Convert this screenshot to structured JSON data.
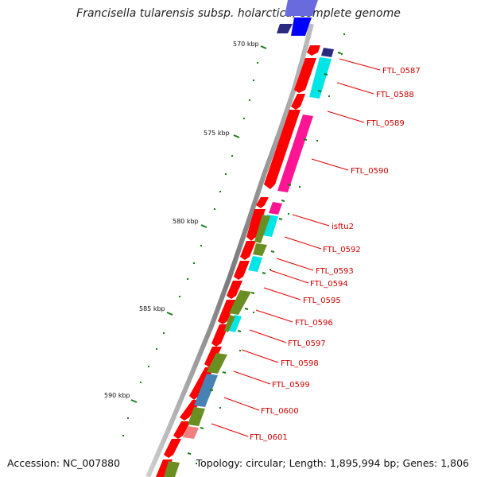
{
  "title": "Francisella tularensis subsp. holarctica, complete genome",
  "footer": {
    "accession": "Accession: NC_007880",
    "topology": "Topology: circular; Length: 1,895,994 bp; Genes: 1,806"
  },
  "kbp_labels": [
    "570 kbp",
    "575 kbp",
    "580 kbp",
    "585 kbp",
    "590 kbp"
  ],
  "gene_labels": [
    "FTL_0587",
    "FTL_0588",
    "FTL_0589",
    "FTL_0590",
    "isftu2",
    "FTL_0592",
    "FTL_0593",
    "FTL_0594",
    "FTL_0595",
    "FTL_0596",
    "FTL_0597",
    "FTL_0598",
    "FTL_0599",
    "FTL_0600",
    "FTL_0601"
  ],
  "colors": {
    "gene_red": "#ff0000",
    "cyan": "#00e5e5",
    "magenta": "#ff1493",
    "olive": "#6b8e23",
    "steel_blue": "#4682b4",
    "navy": "#2a2a80",
    "blue": "#0000ff",
    "pink": "#f08080",
    "label_red": "#cc0000",
    "tick_green": "#1a7a1a",
    "backbone": "#909090"
  }
}
